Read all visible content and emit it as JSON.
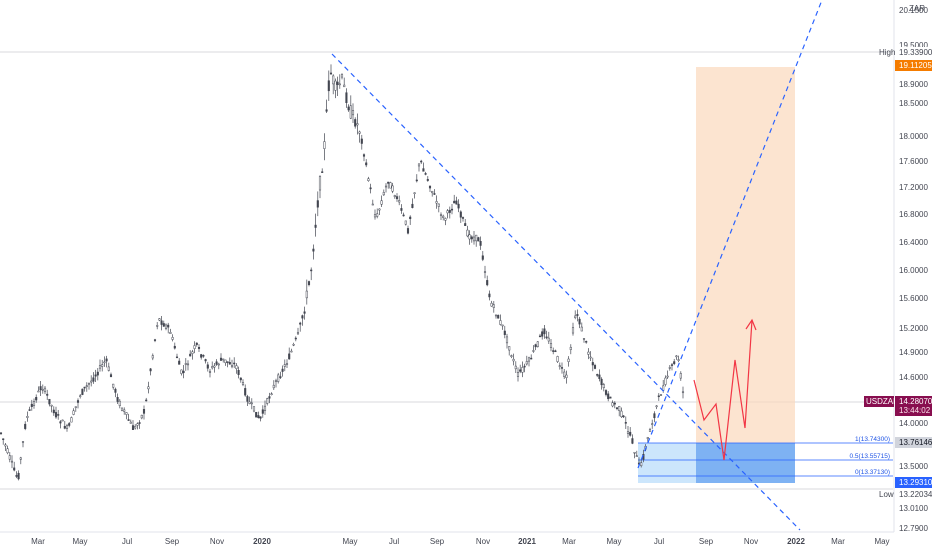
{
  "chart_data": {
    "type": "candlestick",
    "symbol": "USDZAR",
    "currency": "ZAR",
    "y_axis": {
      "ticks": [
        "20.1500",
        "19.5000",
        "19.3390",
        "18.9000",
        "18.5000",
        "18.0000",
        "17.6000",
        "17.2000",
        "16.8000",
        "16.4000",
        "16.0000",
        "15.6000",
        "15.2000",
        "14.9000",
        "14.6000",
        "14.0000",
        "13.5000",
        "13.2203",
        "13.0100",
        "12.7900"
      ]
    },
    "x_axis": {
      "ticks": [
        "Mar",
        "May",
        "Jul",
        "Sep",
        "Nov",
        "2020",
        "May",
        "Jul",
        "Sep",
        "Nov",
        "2021",
        "Mar",
        "May",
        "Jul",
        "Sep",
        "Nov",
        "2022",
        "Mar",
        "May"
      ],
      "bold": [
        "2020",
        "2021",
        "2022"
      ]
    },
    "price_tags": {
      "high_label": "High",
      "high_value": "19.33900",
      "target_value": "19.11205",
      "symbol_label": "USDZAR",
      "last_value": "14.28070",
      "countdown": "13:44:02",
      "stop_value": "13.76146",
      "entry_value": "13.29310",
      "low_label": "Low",
      "low_value": "13.22034"
    },
    "fib_labels": [
      "1(13.74300)",
      "0.5(13.55715)",
      "0(13.37130)"
    ],
    "colors": {
      "candle": "#434651",
      "trendline": "#2962ff",
      "projection": "#f23645",
      "target_zone": "#fbd9bc",
      "stop_zone": "#bbdefb",
      "fib_zone": "#64a0f0",
      "target_tag": "#f57c00",
      "symbol_tag": "#880e4f",
      "entry_tag": "#2962ff"
    }
  }
}
